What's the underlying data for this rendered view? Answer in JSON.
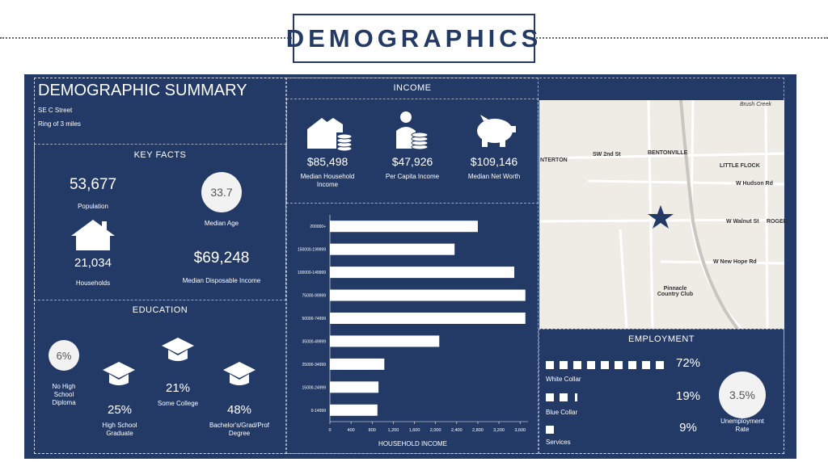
{
  "header": {
    "title": "DEMOGRAPHICS"
  },
  "summary": {
    "title": "DEMOGRAPHIC SUMMARY",
    "address": "SE C Street",
    "ring": "Ring of 3 miles"
  },
  "key_facts": {
    "title": "KEY FACTS",
    "population": {
      "value": "53,677",
      "label": "Population"
    },
    "median_age": {
      "value": "33.7",
      "label": "Median Age"
    },
    "households": {
      "value": "21,034",
      "label": "Households"
    },
    "disposable_income": {
      "value": "$69,248",
      "label": "Median Disposable Income"
    }
  },
  "education": {
    "title": "EDUCATION",
    "items": [
      {
        "value": "6%",
        "label": "No High School Diploma"
      },
      {
        "value": "25%",
        "label": "High School Graduate"
      },
      {
        "value": "21%",
        "label": "Some College"
      },
      {
        "value": "48%",
        "label": "Bachelor's/Grad/Prof Degree"
      }
    ]
  },
  "income": {
    "title": "INCOME",
    "items": [
      {
        "value": "$85,498",
        "label": "Median Household Income"
      },
      {
        "value": "$47,926",
        "label": "Per Capita Income"
      },
      {
        "value": "$109,146",
        "label": "Median Net Worth"
      }
    ]
  },
  "chart_data": {
    "type": "bar",
    "orientation": "horizontal",
    "color": "#ffffff",
    "categories": [
      "200000+",
      "150000-199999",
      "100000-149999",
      "75000-99999",
      "50000-74999",
      "35000-49999",
      "25000-34999",
      "15000-24999",
      "0-14999"
    ],
    "values": [
      2800,
      2360,
      3490,
      3700,
      3700,
      2070,
      1030,
      920,
      900
    ],
    "xlim": [
      0,
      3750
    ],
    "xticks": [
      0,
      400,
      800,
      {
        "value": 1200,
        "label": "1,200"
      },
      {
        "value": 1600,
        "label": "1,600"
      },
      {
        "value": 2000,
        "label": "2,000"
      },
      {
        "value": 2400,
        "label": "2,400"
      },
      {
        "value": 2800,
        "label": "2,800"
      },
      {
        "value": 3200,
        "label": "3,200"
      },
      {
        "value": 3600,
        "label": "3,600"
      }
    ],
    "x_label": "HOUSEHOLD INCOME"
  },
  "map": {
    "labels": [
      "BENTONVILLE",
      "LITTLE FLOCK",
      "W Hudson Rd",
      "W Walnut St",
      "ROGER",
      "W New Hope Rd",
      "Pinnacle Country Club",
      "SW 2nd St",
      "NTERTON",
      "Brush Creek"
    ]
  },
  "employment": {
    "title": "EMPLOYMENT",
    "items": [
      {
        "value": "72%",
        "label": "White Collar"
      },
      {
        "value": "19%",
        "label": "Blue Collar"
      },
      {
        "value": "9%",
        "label": "Services"
      }
    ],
    "unemployment": {
      "value": "3.5%",
      "label": "Unemployment Rate"
    }
  }
}
